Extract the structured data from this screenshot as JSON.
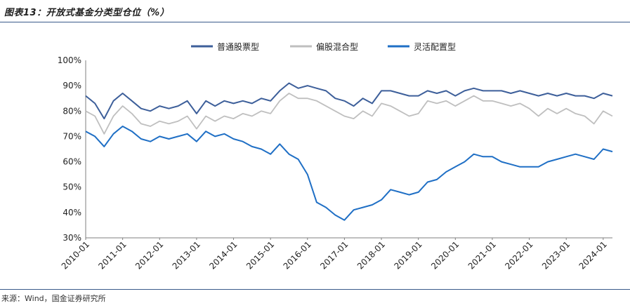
{
  "title": "图表13：开放式基金分类型仓位（%）",
  "source": "来源：Wind，国金证券研究所",
  "chart_data": {
    "type": "line",
    "ylim": [
      30,
      100
    ],
    "yticks": [
      "30%",
      "40%",
      "50%",
      "60%",
      "70%",
      "80%",
      "90%",
      "100%"
    ],
    "xticks": [
      "2010-01",
      "2011-01",
      "2012-01",
      "2013-01",
      "2014-01",
      "2015-01",
      "2016-01",
      "2017-01",
      "2018-01",
      "2019-01",
      "2020-01",
      "2021-01",
      "2022-01",
      "2023-01",
      "2024-01"
    ],
    "xlim": [
      "2010-01",
      "2024-04"
    ],
    "grid": false,
    "legend_position": "top-center",
    "series": [
      {
        "name": "普通股票型",
        "color": "#3d5f9a",
        "points": [
          [
            "2010-01",
            86
          ],
          [
            "2010-04",
            83
          ],
          [
            "2010-07",
            77
          ],
          [
            "2010-10",
            84
          ],
          [
            "2011-01",
            87
          ],
          [
            "2011-04",
            84
          ],
          [
            "2011-07",
            81
          ],
          [
            "2011-10",
            80
          ],
          [
            "2012-01",
            82
          ],
          [
            "2012-04",
            81
          ],
          [
            "2012-07",
            82
          ],
          [
            "2012-10",
            84
          ],
          [
            "2013-01",
            79
          ],
          [
            "2013-04",
            84
          ],
          [
            "2013-07",
            82
          ],
          [
            "2013-10",
            84
          ],
          [
            "2014-01",
            83
          ],
          [
            "2014-04",
            84
          ],
          [
            "2014-07",
            83
          ],
          [
            "2014-10",
            85
          ],
          [
            "2015-01",
            84
          ],
          [
            "2015-04",
            88
          ],
          [
            "2015-07",
            91
          ],
          [
            "2015-10",
            89
          ],
          [
            "2016-01",
            90
          ],
          [
            "2016-04",
            89
          ],
          [
            "2016-07",
            88
          ],
          [
            "2016-10",
            85
          ],
          [
            "2017-01",
            84
          ],
          [
            "2017-04",
            82
          ],
          [
            "2017-07",
            85
          ],
          [
            "2017-10",
            83
          ],
          [
            "2018-01",
            88
          ],
          [
            "2018-04",
            88
          ],
          [
            "2018-07",
            87
          ],
          [
            "2018-10",
            86
          ],
          [
            "2019-01",
            86
          ],
          [
            "2019-04",
            88
          ],
          [
            "2019-07",
            87
          ],
          [
            "2019-10",
            88
          ],
          [
            "2020-01",
            86
          ],
          [
            "2020-04",
            88
          ],
          [
            "2020-07",
            89
          ],
          [
            "2020-10",
            88
          ],
          [
            "2021-01",
            88
          ],
          [
            "2021-04",
            88
          ],
          [
            "2021-07",
            87
          ],
          [
            "2021-10",
            88
          ],
          [
            "2022-01",
            87
          ],
          [
            "2022-04",
            86
          ],
          [
            "2022-07",
            87
          ],
          [
            "2022-10",
            86
          ],
          [
            "2023-01",
            87
          ],
          [
            "2023-04",
            86
          ],
          [
            "2023-07",
            86
          ],
          [
            "2023-10",
            85
          ],
          [
            "2024-01",
            87
          ],
          [
            "2024-04",
            86
          ]
        ]
      },
      {
        "name": "偏股混合型",
        "color": "#bfbfbf",
        "points": [
          [
            "2010-01",
            80
          ],
          [
            "2010-04",
            78
          ],
          [
            "2010-07",
            71
          ],
          [
            "2010-10",
            78
          ],
          [
            "2011-01",
            82
          ],
          [
            "2011-04",
            79
          ],
          [
            "2011-07",
            75
          ],
          [
            "2011-10",
            74
          ],
          [
            "2012-01",
            76
          ],
          [
            "2012-04",
            75
          ],
          [
            "2012-07",
            76
          ],
          [
            "2012-10",
            78
          ],
          [
            "2013-01",
            73
          ],
          [
            "2013-04",
            78
          ],
          [
            "2013-07",
            76
          ],
          [
            "2013-10",
            78
          ],
          [
            "2014-01",
            77
          ],
          [
            "2014-04",
            79
          ],
          [
            "2014-07",
            78
          ],
          [
            "2014-10",
            80
          ],
          [
            "2015-01",
            79
          ],
          [
            "2015-04",
            84
          ],
          [
            "2015-07",
            87
          ],
          [
            "2015-10",
            85
          ],
          [
            "2016-01",
            85
          ],
          [
            "2016-04",
            84
          ],
          [
            "2016-07",
            82
          ],
          [
            "2016-10",
            80
          ],
          [
            "2017-01",
            78
          ],
          [
            "2017-04",
            77
          ],
          [
            "2017-07",
            80
          ],
          [
            "2017-10",
            78
          ],
          [
            "2018-01",
            83
          ],
          [
            "2018-04",
            82
          ],
          [
            "2018-07",
            80
          ],
          [
            "2018-10",
            78
          ],
          [
            "2019-01",
            79
          ],
          [
            "2019-04",
            84
          ],
          [
            "2019-07",
            83
          ],
          [
            "2019-10",
            84
          ],
          [
            "2020-01",
            82
          ],
          [
            "2020-04",
            84
          ],
          [
            "2020-07",
            86
          ],
          [
            "2020-10",
            84
          ],
          [
            "2021-01",
            84
          ],
          [
            "2021-04",
            83
          ],
          [
            "2021-07",
            82
          ],
          [
            "2021-10",
            83
          ],
          [
            "2022-01",
            81
          ],
          [
            "2022-04",
            78
          ],
          [
            "2022-07",
            81
          ],
          [
            "2022-10",
            79
          ],
          [
            "2023-01",
            81
          ],
          [
            "2023-04",
            79
          ],
          [
            "2023-07",
            78
          ],
          [
            "2023-10",
            75
          ],
          [
            "2024-01",
            80
          ],
          [
            "2024-04",
            78
          ]
        ]
      },
      {
        "name": "灵活配置型",
        "color": "#1f6fc5",
        "points": [
          [
            "2010-01",
            72
          ],
          [
            "2010-04",
            70
          ],
          [
            "2010-07",
            66
          ],
          [
            "2010-10",
            71
          ],
          [
            "2011-01",
            74
          ],
          [
            "2011-04",
            72
          ],
          [
            "2011-07",
            69
          ],
          [
            "2011-10",
            68
          ],
          [
            "2012-01",
            70
          ],
          [
            "2012-04",
            69
          ],
          [
            "2012-07",
            70
          ],
          [
            "2012-10",
            71
          ],
          [
            "2013-01",
            68
          ],
          [
            "2013-04",
            72
          ],
          [
            "2013-07",
            70
          ],
          [
            "2013-10",
            71
          ],
          [
            "2014-01",
            69
          ],
          [
            "2014-04",
            68
          ],
          [
            "2014-07",
            66
          ],
          [
            "2014-10",
            65
          ],
          [
            "2015-01",
            63
          ],
          [
            "2015-04",
            67
          ],
          [
            "2015-07",
            63
          ],
          [
            "2015-10",
            61
          ],
          [
            "2016-01",
            55
          ],
          [
            "2016-04",
            44
          ],
          [
            "2016-07",
            42
          ],
          [
            "2016-10",
            39
          ],
          [
            "2017-01",
            37
          ],
          [
            "2017-04",
            41
          ],
          [
            "2017-07",
            42
          ],
          [
            "2017-10",
            43
          ],
          [
            "2018-01",
            45
          ],
          [
            "2018-04",
            49
          ],
          [
            "2018-07",
            48
          ],
          [
            "2018-10",
            47
          ],
          [
            "2019-01",
            48
          ],
          [
            "2019-04",
            52
          ],
          [
            "2019-07",
            53
          ],
          [
            "2019-10",
            56
          ],
          [
            "2020-01",
            58
          ],
          [
            "2020-04",
            60
          ],
          [
            "2020-07",
            63
          ],
          [
            "2020-10",
            62
          ],
          [
            "2021-01",
            62
          ],
          [
            "2021-04",
            60
          ],
          [
            "2021-07",
            59
          ],
          [
            "2021-10",
            58
          ],
          [
            "2022-01",
            58
          ],
          [
            "2022-04",
            58
          ],
          [
            "2022-07",
            60
          ],
          [
            "2022-10",
            61
          ],
          [
            "2023-01",
            62
          ],
          [
            "2023-04",
            63
          ],
          [
            "2023-07",
            62
          ],
          [
            "2023-10",
            61
          ],
          [
            "2024-01",
            65
          ],
          [
            "2024-04",
            64
          ]
        ]
      }
    ]
  }
}
